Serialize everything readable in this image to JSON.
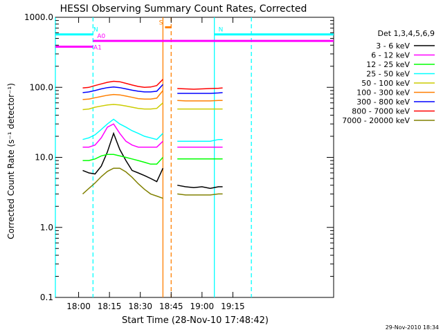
{
  "chart_data": {
    "type": "line",
    "title": "HESSI Observing Summary Count Rates, Corrected",
    "xlabel": "Start Time (28-Nov-10 17:48:42)",
    "ylabel": "Corrected Count Rate (s⁻¹ detector⁻¹)",
    "y_scale": "log",
    "ylim": [
      0.1,
      1000
    ],
    "xlim": [
      "17:48:42",
      "20:04:00"
    ],
    "x_ticks": [
      "18:00",
      "18:15",
      "18:30",
      "18:45",
      "19:00",
      "19:15"
    ],
    "y_ticks": [
      "0.1",
      "1.0",
      "10.0",
      "100.0",
      "1000.0"
    ],
    "grid": false,
    "legend_title": "Det 1,3,4,5,6,9",
    "legend_position": "right",
    "data_gap": [
      "18:42",
      "18:47"
    ],
    "series": [
      {
        "name": "3 - 6 keV",
        "color": "#000000",
        "x": [
          "18:02",
          "18:05",
          "18:08",
          "18:11",
          "18:14",
          "18:17",
          "18:20",
          "18:23",
          "18:26",
          "18:29",
          "18:32",
          "18:35",
          "18:38",
          "18:41",
          "18:48",
          "18:52",
          "18:56",
          "19:00",
          "19:04",
          "19:08",
          "19:10"
        ],
        "values": [
          6.5,
          6.0,
          5.8,
          7.5,
          12,
          22,
          13,
          9,
          6.5,
          6,
          5.5,
          5,
          4.5,
          7,
          4,
          3.8,
          3.7,
          3.8,
          3.6,
          3.8,
          3.8
        ]
      },
      {
        "name": "6 - 12 keV",
        "color": "#ff00ff",
        "x": [
          "18:02",
          "18:05",
          "18:08",
          "18:11",
          "18:14",
          "18:17",
          "18:20",
          "18:23",
          "18:26",
          "18:29",
          "18:32",
          "18:35",
          "18:38",
          "18:41",
          "18:48",
          "18:52",
          "18:56",
          "19:00",
          "19:04",
          "19:08",
          "19:10"
        ],
        "values": [
          14,
          14,
          15,
          19,
          27,
          30,
          22,
          17,
          15,
          14,
          14,
          14,
          14,
          17,
          14,
          14,
          14,
          14,
          14,
          14,
          14
        ]
      },
      {
        "name": "12 - 25 keV",
        "color": "#00ff00",
        "x": [
          "18:02",
          "18:05",
          "18:08",
          "18:11",
          "18:14",
          "18:17",
          "18:20",
          "18:23",
          "18:26",
          "18:29",
          "18:32",
          "18:35",
          "18:38",
          "18:41",
          "18:48",
          "18:52",
          "18:56",
          "19:00",
          "19:04",
          "19:08",
          "19:10"
        ],
        "values": [
          9,
          9,
          9.5,
          10.5,
          11,
          11,
          10.5,
          10,
          9.5,
          9,
          8.5,
          8,
          8,
          10,
          9.5,
          9.5,
          9.5,
          9.5,
          9.5,
          9.5,
          9.5
        ]
      },
      {
        "name": "25 - 50 keV",
        "color": "#00ffff",
        "x": [
          "18:02",
          "18:05",
          "18:08",
          "18:11",
          "18:14",
          "18:17",
          "18:20",
          "18:23",
          "18:26",
          "18:29",
          "18:32",
          "18:35",
          "18:38",
          "18:41",
          "18:48",
          "18:52",
          "18:56",
          "19:00",
          "19:04",
          "19:08",
          "19:10"
        ],
        "values": [
          18,
          19,
          21,
          25,
          30,
          35,
          30,
          27,
          24,
          22,
          20,
          19,
          18,
          22,
          17,
          17,
          17,
          17,
          17,
          18,
          18
        ]
      },
      {
        "name": "50 - 100 keV",
        "color": "#cccc00",
        "x": [
          "18:02",
          "18:05",
          "18:08",
          "18:11",
          "18:14",
          "18:17",
          "18:20",
          "18:23",
          "18:26",
          "18:29",
          "18:32",
          "18:35",
          "18:38",
          "18:41",
          "18:48",
          "18:52",
          "18:56",
          "19:00",
          "19:04",
          "19:08",
          "19:10"
        ],
        "values": [
          48,
          49,
          52,
          54,
          56,
          57,
          56,
          54,
          52,
          50,
          49,
          49,
          50,
          60,
          49,
          49,
          49,
          49,
          49,
          49,
          49
        ]
      },
      {
        "name": "100 - 300 keV",
        "color": "#ff7f00",
        "x": [
          "18:02",
          "18:05",
          "18:08",
          "18:11",
          "18:14",
          "18:17",
          "18:20",
          "18:23",
          "18:26",
          "18:29",
          "18:32",
          "18:35",
          "18:38",
          "18:41",
          "18:48",
          "18:52",
          "18:56",
          "19:00",
          "19:04",
          "19:08",
          "19:10"
        ],
        "values": [
          67,
          68,
          71,
          74,
          77,
          79,
          78,
          75,
          72,
          69,
          68,
          68,
          70,
          90,
          65,
          64,
          64,
          64,
          64,
          65,
          65
        ]
      },
      {
        "name": "300 - 800 keV",
        "color": "#0000ff",
        "x": [
          "18:02",
          "18:05",
          "18:08",
          "18:11",
          "18:14",
          "18:17",
          "18:20",
          "18:23",
          "18:26",
          "18:29",
          "18:32",
          "18:35",
          "18:38",
          "18:41",
          "18:48",
          "18:52",
          "18:56",
          "19:00",
          "19:04",
          "19:08",
          "19:10"
        ],
        "values": [
          84,
          86,
          90,
          95,
          99,
          101,
          99,
          95,
          91,
          88,
          86,
          86,
          88,
          110,
          82,
          82,
          82,
          82,
          82,
          83,
          84
        ]
      },
      {
        "name": "800 - 7000 keV",
        "color": "#ff0000",
        "x": [
          "18:02",
          "18:05",
          "18:08",
          "18:11",
          "18:14",
          "18:17",
          "18:20",
          "18:23",
          "18:26",
          "18:29",
          "18:32",
          "18:35",
          "18:38",
          "18:41",
          "18:48",
          "18:52",
          "18:56",
          "19:00",
          "19:04",
          "19:08",
          "19:10"
        ],
        "values": [
          98,
          100,
          106,
          112,
          118,
          122,
          120,
          114,
          108,
          103,
          100,
          101,
          106,
          130,
          96,
          95,
          94,
          95,
          96,
          97,
          98
        ]
      },
      {
        "name": "7000 - 20000 keV",
        "color": "#808000",
        "x": [
          "18:02",
          "18:05",
          "18:08",
          "18:11",
          "18:14",
          "18:17",
          "18:20",
          "18:23",
          "18:26",
          "18:29",
          "18:32",
          "18:35",
          "18:38",
          "18:41",
          "18:48",
          "18:52",
          "18:56",
          "19:00",
          "19:04",
          "19:08",
          "19:10"
        ],
        "values": [
          3.0,
          3.6,
          4.3,
          5.3,
          6.3,
          7.0,
          7.0,
          6.2,
          5.2,
          4.2,
          3.5,
          3.0,
          2.8,
          2.6,
          3.0,
          2.9,
          2.9,
          2.9,
          2.9,
          3.0,
          3.0
        ]
      }
    ],
    "annotations": [
      {
        "label": "N",
        "color": "#00ffff",
        "x_start": "17:48:42",
        "x_end": "18:07",
        "y": 570
      },
      {
        "label": "N",
        "color": "#00ffff",
        "x_start": "19:06",
        "x_end": "20:04",
        "y": 570
      },
      {
        "label": "S",
        "color": "#ff7f00",
        "x_start": "18:42",
        "x_end": "18:45",
        "y": 720
      },
      {
        "label": "A0",
        "color": "#ff00ff",
        "x_start": "18:07",
        "x_end": "20:04",
        "y": 460
      },
      {
        "label": "A1",
        "color": "#ff00ff",
        "x_start": "17:48:42",
        "x_end": "18:07",
        "y": 380
      }
    ],
    "vertical_markers": [
      {
        "x": "17:48:42",
        "color": "#00ffff",
        "style": "solid"
      },
      {
        "x": "18:07",
        "color": "#00ffff",
        "style": "dashed"
      },
      {
        "x": "18:41",
        "color": "#ff7f00",
        "style": "solid"
      },
      {
        "x": "18:45",
        "color": "#ff7f00",
        "style": "dashed"
      },
      {
        "x": "19:06",
        "color": "#00ffff",
        "style": "solid"
      },
      {
        "x": "19:24",
        "color": "#00ffff",
        "style": "dashed"
      }
    ],
    "footer_stamp": "29-Nov-2010 18:34"
  }
}
